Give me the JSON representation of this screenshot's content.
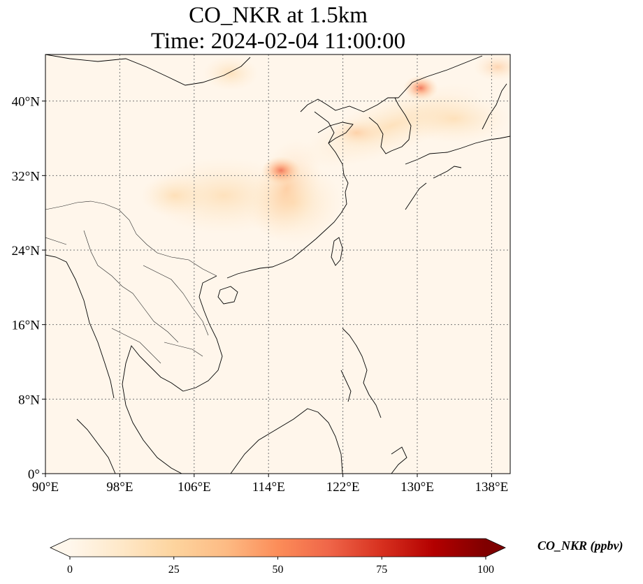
{
  "title": {
    "line1": "CO_NKR at 1.5km",
    "line2": "Time: 2024-02-04 11:00:00"
  },
  "map": {
    "projection": "PlateCarree",
    "lon_range": [
      90,
      140
    ],
    "lat_range": [
      0,
      45
    ],
    "gridlines": "dotted",
    "coastlines": true,
    "borders": true,
    "x_ticks": [
      {
        "value": 90,
        "label": "90°E"
      },
      {
        "value": 98,
        "label": "98°E"
      },
      {
        "value": 106,
        "label": "106°E"
      },
      {
        "value": 114,
        "label": "114°E"
      },
      {
        "value": 122,
        "label": "122°E"
      },
      {
        "value": 130,
        "label": "130°E"
      },
      {
        "value": 138,
        "label": "138°E"
      }
    ],
    "y_ticks": [
      {
        "value": 0,
        "label": "0°"
      },
      {
        "value": 8,
        "label": "8°N"
      },
      {
        "value": 16,
        "label": "16°N"
      },
      {
        "value": 24,
        "label": "24°N"
      },
      {
        "value": 32,
        "label": "32°N"
      },
      {
        "value": 40,
        "label": "40°N"
      }
    ],
    "field_name": "CO_NKR",
    "field_unit": "ppbv",
    "hotspots": [
      {
        "lon": 115,
        "lat": 32.5,
        "value": 48
      },
      {
        "lon": 130,
        "lat": 41.5,
        "value": 38
      },
      {
        "lon": 138,
        "lat": 43.5,
        "value": 20
      }
    ]
  },
  "colorbar": {
    "label": "CO_NKR (ppbv)",
    "cmap": "OrRd",
    "vmin": 0,
    "vmax": 100,
    "extend": "both",
    "ticks": [
      {
        "value": 0,
        "label": "0"
      },
      {
        "value": 25,
        "label": "25"
      },
      {
        "value": 50,
        "label": "50"
      },
      {
        "value": 75,
        "label": "75"
      },
      {
        "value": 100,
        "label": "100"
      }
    ],
    "colors": [
      "#fff7ec",
      "#fee8c8",
      "#fdd49e",
      "#fdbb84",
      "#fc8d59",
      "#ef6548",
      "#d7301f",
      "#b30000",
      "#7f0000"
    ]
  }
}
